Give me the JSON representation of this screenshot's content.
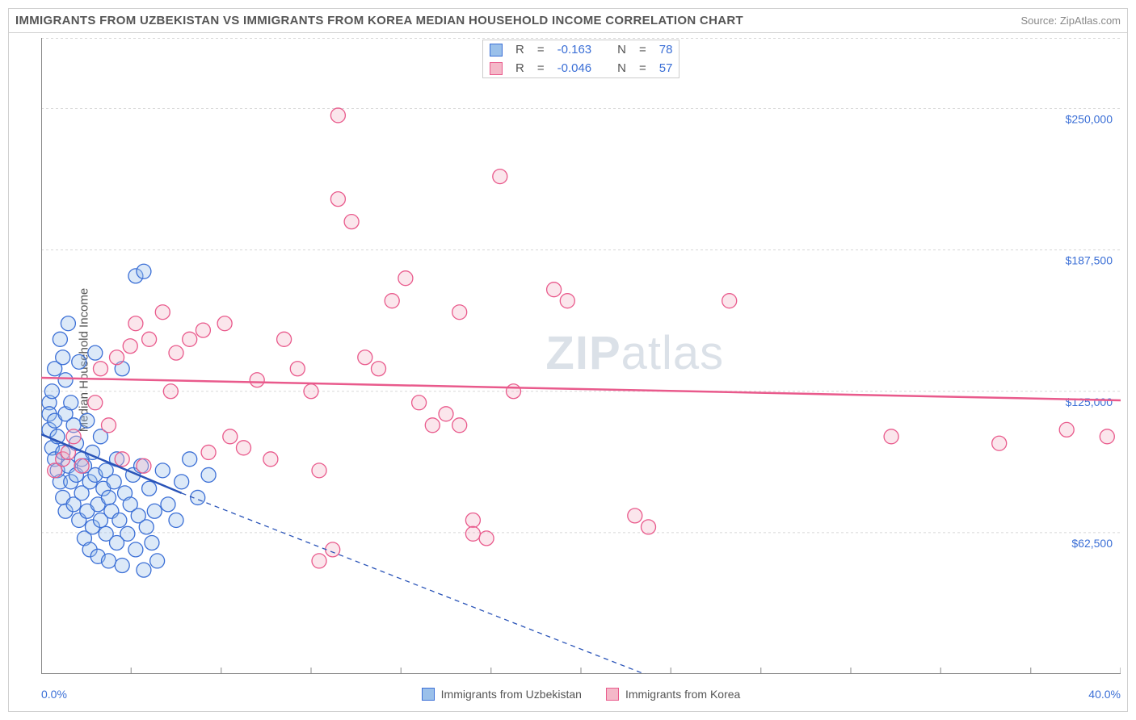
{
  "title": "IMMIGRANTS FROM UZBEKISTAN VS IMMIGRANTS FROM KOREA MEDIAN HOUSEHOLD INCOME CORRELATION CHART",
  "source": "Source: ZipAtlas.com",
  "ylabel": "Median Household Income",
  "watermark_bold": "ZIP",
  "watermark_rest": "atlas",
  "chart": {
    "type": "scatter",
    "background_color": "#ffffff",
    "grid_color": "#d8d8d8",
    "axis_border_color": "#888888",
    "label_color": "#555555",
    "value_color": "#3b6fd6",
    "xlim": [
      0,
      40
    ],
    "ylim": [
      0,
      281250
    ],
    "x_ticks": [
      0,
      3.33,
      6.67,
      10,
      13.33,
      16.67,
      20,
      23.33,
      26.67,
      30,
      33.33,
      36.67,
      40
    ],
    "y_gridlines": [
      62500,
      125000,
      187500,
      250000
    ],
    "y_tick_labels": [
      "$62,500",
      "$125,000",
      "$187,500",
      "$250,000"
    ],
    "x_min_label": "0.0%",
    "x_max_label": "40.0%",
    "marker_radius": 9,
    "marker_stroke_width": 1.3,
    "marker_fill_opacity": 0.35,
    "trend_line_width": 2.5
  },
  "series": [
    {
      "name": "Immigrants from Uzbekistan",
      "fill": "#9ac0ea",
      "stroke": "#3b6fd6",
      "line_color": "#2a54b8",
      "R": "-0.163",
      "N": "78",
      "trend": {
        "x1": 0,
        "y1": 106000,
        "x2": 5.2,
        "y2": 80000,
        "extend_x": 24.5,
        "extend_y": -10000
      },
      "points": [
        [
          0.3,
          120000
        ],
        [
          0.3,
          115000
        ],
        [
          0.3,
          108000
        ],
        [
          0.4,
          125000
        ],
        [
          0.4,
          100000
        ],
        [
          0.5,
          135000
        ],
        [
          0.5,
          95000
        ],
        [
          0.5,
          112000
        ],
        [
          0.6,
          90000
        ],
        [
          0.6,
          105000
        ],
        [
          0.7,
          148000
        ],
        [
          0.7,
          85000
        ],
        [
          0.8,
          140000
        ],
        [
          0.8,
          98000
        ],
        [
          0.8,
          78000
        ],
        [
          0.9,
          115000
        ],
        [
          0.9,
          130000
        ],
        [
          0.9,
          72000
        ],
        [
          1.0,
          92000
        ],
        [
          1.0,
          155000
        ],
        [
          1.1,
          85000
        ],
        [
          1.1,
          120000
        ],
        [
          1.2,
          75000
        ],
        [
          1.2,
          110000
        ],
        [
          1.3,
          102000
        ],
        [
          1.3,
          88000
        ],
        [
          1.4,
          138000
        ],
        [
          1.4,
          68000
        ],
        [
          1.5,
          95000
        ],
        [
          1.5,
          80000
        ],
        [
          1.6,
          92000
        ],
        [
          1.6,
          60000
        ],
        [
          1.7,
          112000
        ],
        [
          1.7,
          72000
        ],
        [
          1.8,
          85000
        ],
        [
          1.8,
          55000
        ],
        [
          1.9,
          98000
        ],
        [
          1.9,
          65000
        ],
        [
          2.0,
          88000
        ],
        [
          2.0,
          142000
        ],
        [
          2.1,
          75000
        ],
        [
          2.1,
          52000
        ],
        [
          2.2,
          105000
        ],
        [
          2.2,
          68000
        ],
        [
          2.3,
          82000
        ],
        [
          2.4,
          62000
        ],
        [
          2.4,
          90000
        ],
        [
          2.5,
          78000
        ],
        [
          2.5,
          50000
        ],
        [
          2.6,
          72000
        ],
        [
          2.7,
          85000
        ],
        [
          2.8,
          95000
        ],
        [
          2.8,
          58000
        ],
        [
          2.9,
          68000
        ],
        [
          3.0,
          48000
        ],
        [
          3.0,
          135000
        ],
        [
          3.1,
          80000
        ],
        [
          3.2,
          62000
        ],
        [
          3.3,
          75000
        ],
        [
          3.4,
          88000
        ],
        [
          3.5,
          55000
        ],
        [
          3.5,
          176000
        ],
        [
          3.6,
          70000
        ],
        [
          3.7,
          92000
        ],
        [
          3.8,
          178000
        ],
        [
          3.8,
          46000
        ],
        [
          3.9,
          65000
        ],
        [
          4.0,
          82000
        ],
        [
          4.1,
          58000
        ],
        [
          4.2,
          72000
        ],
        [
          4.3,
          50000
        ],
        [
          4.5,
          90000
        ],
        [
          4.7,
          75000
        ],
        [
          5.0,
          68000
        ],
        [
          5.2,
          85000
        ],
        [
          5.5,
          95000
        ],
        [
          5.8,
          78000
        ],
        [
          6.2,
          88000
        ]
      ]
    },
    {
      "name": "Immigrants from Korea",
      "fill": "#f4b8c8",
      "stroke": "#e95a8c",
      "line_color": "#e95a8c",
      "R": "-0.046",
      "N": "57",
      "trend": {
        "x1": 0,
        "y1": 131000,
        "x2": 40,
        "y2": 121000
      },
      "points": [
        [
          0.5,
          90000
        ],
        [
          0.8,
          95000
        ],
        [
          1.0,
          98000
        ],
        [
          1.2,
          105000
        ],
        [
          1.5,
          92000
        ],
        [
          2.0,
          120000
        ],
        [
          2.2,
          135000
        ],
        [
          2.5,
          110000
        ],
        [
          2.8,
          140000
        ],
        [
          3.0,
          95000
        ],
        [
          3.3,
          145000
        ],
        [
          3.5,
          155000
        ],
        [
          3.8,
          92000
        ],
        [
          4.0,
          148000
        ],
        [
          4.5,
          160000
        ],
        [
          4.8,
          125000
        ],
        [
          5.0,
          142000
        ],
        [
          5.5,
          148000
        ],
        [
          6.0,
          152000
        ],
        [
          6.2,
          98000
        ],
        [
          6.8,
          155000
        ],
        [
          7.0,
          105000
        ],
        [
          7.5,
          100000
        ],
        [
          8.0,
          130000
        ],
        [
          8.5,
          95000
        ],
        [
          9.0,
          148000
        ],
        [
          9.5,
          135000
        ],
        [
          10.0,
          125000
        ],
        [
          10.3,
          50000
        ],
        [
          10.3,
          90000
        ],
        [
          10.8,
          55000
        ],
        [
          11.0,
          210000
        ],
        [
          11.0,
          247000
        ],
        [
          11.5,
          200000
        ],
        [
          12.0,
          140000
        ],
        [
          12.5,
          135000
        ],
        [
          13.0,
          165000
        ],
        [
          13.5,
          175000
        ],
        [
          14.0,
          120000
        ],
        [
          14.5,
          110000
        ],
        [
          15.0,
          115000
        ],
        [
          15.5,
          160000
        ],
        [
          15.5,
          110000
        ],
        [
          16.0,
          68000
        ],
        [
          16.0,
          62000
        ],
        [
          16.5,
          60000
        ],
        [
          17.0,
          220000
        ],
        [
          17.5,
          125000
        ],
        [
          19.0,
          170000
        ],
        [
          19.5,
          165000
        ],
        [
          22.0,
          70000
        ],
        [
          22.5,
          65000
        ],
        [
          25.5,
          165000
        ],
        [
          31.5,
          105000
        ],
        [
          35.5,
          102000
        ],
        [
          38.0,
          108000
        ],
        [
          39.5,
          105000
        ]
      ]
    }
  ],
  "corr_box": {
    "r_label": "R",
    "n_label": "N",
    "eq": "="
  }
}
